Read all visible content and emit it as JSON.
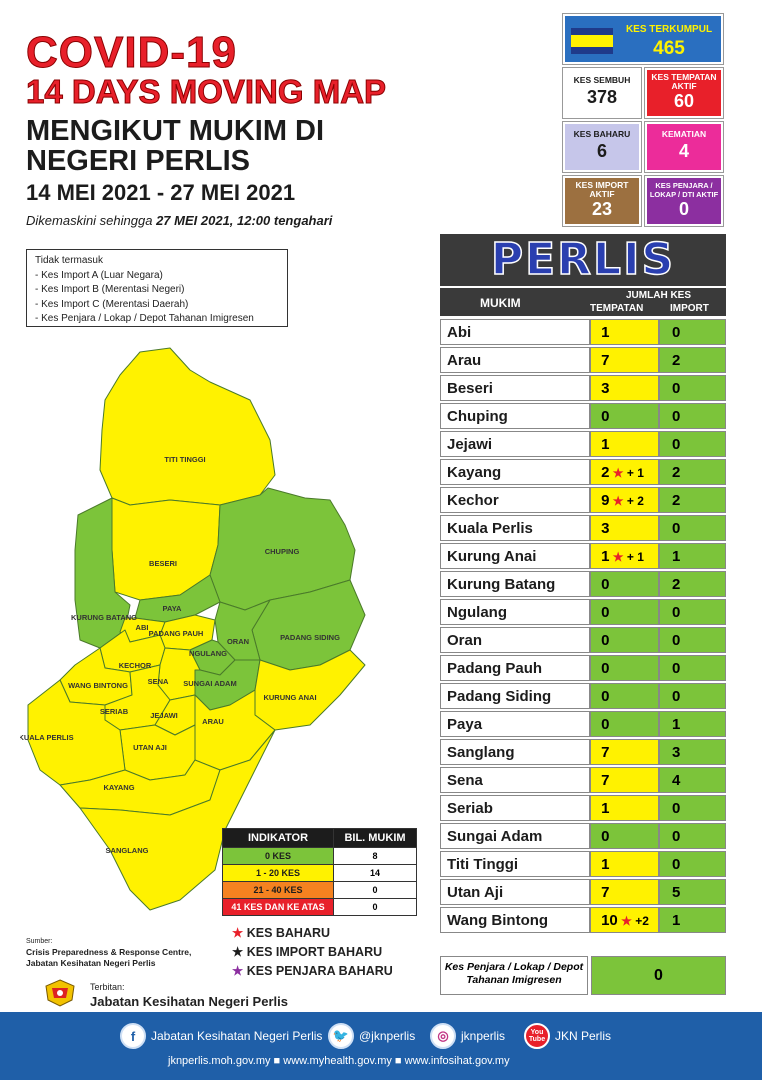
{
  "header": {
    "title_line1": "COVID-19",
    "title_line2": "14 DAYS MOVING MAP",
    "subtitle_line1": "MENGIKUT MUKIM DI",
    "subtitle_line2": "NEGERI PERLIS",
    "date_range": "14 MEI 2021 - 27 MEI 2021",
    "updated_prefix": "Dikemaskini sehingga ",
    "updated_value": "27 MEI 2021, 12:00 tengahari"
  },
  "exclusion_note": {
    "heading": "Tidak termasuk",
    "items": [
      "- Kes Import A (Luar Negara)",
      "- Kes Import B (Merentasi Negeri)",
      "- Kes Import C (Merentasi Daerah)",
      "- Kes Penjara / Lokap / Depot Tahanan Imigresen"
    ]
  },
  "stats": {
    "kes_terkumpul": {
      "label": "KES TERKUMPUL",
      "value": "465"
    },
    "kes_sembuh": {
      "label": "KES SEMBUH",
      "value": "378"
    },
    "kes_tempatan_aktif": {
      "label": "KES TEMPATAN AKTIF",
      "value": "60"
    },
    "kes_baharu": {
      "label": "KES BAHARU",
      "value": "6"
    },
    "kematian": {
      "label": "KEMATIAN",
      "value": "4"
    },
    "kes_import_aktif": {
      "label": "KES IMPORT AKTIF",
      "value": "23"
    },
    "kes_penjara": {
      "label": "KES PENJARA / LOKAP / DTI AKTIF",
      "value": "0"
    }
  },
  "table": {
    "state": "PERLIS",
    "col_mukim": "MUKIM",
    "col_group": "JUMLAH KES",
    "col_tempatan": "TEMPATAN",
    "col_import": "IMPORT",
    "rows": [
      {
        "mukim": "Abi",
        "tempatan": "1",
        "import": "0",
        "level": "y",
        "new": ""
      },
      {
        "mukim": "Arau",
        "tempatan": "7",
        "import": "2",
        "level": "y",
        "new": ""
      },
      {
        "mukim": "Beseri",
        "tempatan": "3",
        "import": "0",
        "level": "y",
        "new": ""
      },
      {
        "mukim": "Chuping",
        "tempatan": "0",
        "import": "0",
        "level": "g",
        "new": ""
      },
      {
        "mukim": "Jejawi",
        "tempatan": "1",
        "import": "0",
        "level": "y",
        "new": ""
      },
      {
        "mukim": "Kayang",
        "tempatan": "2",
        "import": "2",
        "level": "y",
        "new": "+ 1"
      },
      {
        "mukim": "Kechor",
        "tempatan": "9",
        "import": "2",
        "level": "y",
        "new": "+ 2"
      },
      {
        "mukim": "Kuala Perlis",
        "tempatan": "3",
        "import": "0",
        "level": "y",
        "new": ""
      },
      {
        "mukim": "Kurung Anai",
        "tempatan": "1",
        "import": "1",
        "level": "y",
        "new": "+ 1"
      },
      {
        "mukim": "Kurung Batang",
        "tempatan": "0",
        "import": "2",
        "level": "g",
        "new": ""
      },
      {
        "mukim": "Ngulang",
        "tempatan": "0",
        "import": "0",
        "level": "g",
        "new": ""
      },
      {
        "mukim": "Oran",
        "tempatan": "0",
        "import": "0",
        "level": "g",
        "new": ""
      },
      {
        "mukim": "Padang Pauh",
        "tempatan": "0",
        "import": "0",
        "level": "g",
        "new": ""
      },
      {
        "mukim": "Padang Siding",
        "tempatan": "0",
        "import": "0",
        "level": "g",
        "new": ""
      },
      {
        "mukim": "Paya",
        "tempatan": "0",
        "import": "1",
        "level": "g",
        "new": ""
      },
      {
        "mukim": "Sanglang",
        "tempatan": "7",
        "import": "3",
        "level": "y",
        "new": ""
      },
      {
        "mukim": "Sena",
        "tempatan": "7",
        "import": "4",
        "level": "y",
        "new": ""
      },
      {
        "mukim": "Seriab",
        "tempatan": "1",
        "import": "0",
        "level": "y",
        "new": ""
      },
      {
        "mukim": "Sungai Adam",
        "tempatan": "0",
        "import": "0",
        "level": "g",
        "new": ""
      },
      {
        "mukim": "Titi Tinggi",
        "tempatan": "1",
        "import": "0",
        "level": "y",
        "new": ""
      },
      {
        "mukim": "Utan Aji",
        "tempatan": "7",
        "import": "5",
        "level": "y",
        "new": ""
      },
      {
        "mukim": "Wang Bintong",
        "tempatan": "10",
        "import": "1",
        "level": "y",
        "new": "+2"
      }
    ],
    "penjara_label": "Kes Penjara / Lokap / Depot Tahanan Imigresen",
    "penjara_value": "0"
  },
  "map_labels": {
    "titi_tinggi": "TITI TINGGI",
    "beseri": "BESERI",
    "chuping": "CHUPING",
    "kurung_batang": "KURUNG BATANG",
    "paya": "PAYA",
    "abi": "ABI",
    "padang_pauh": "PADANG PAUH",
    "ngulang": "NGULANG",
    "oran": "ORAN",
    "padang_siding": "PADANG SIDING",
    "kechor": "KECHOR",
    "wang_bintong": "WANG BINTONG",
    "sena": "SENA",
    "sungai_adam": "SUNGAI ADAM",
    "seriab": "SERIAB",
    "jejawi": "JEJAWI",
    "arau": "ARAU",
    "kurung_anai": "KURUNG ANAI",
    "kuala_perlis": "KUALA PERLIS",
    "utan_aji": "UTAN AJI",
    "kayang": "KAYANG",
    "sanglang": "SANGLANG"
  },
  "indicator": {
    "col1": "INDIKATOR",
    "col2": "BIL. MUKIM",
    "rows": [
      {
        "label": "0 KES",
        "count": "8",
        "color": "#7cc43a",
        "text": "#1c1c1c"
      },
      {
        "label": "1 - 20 KES",
        "count": "14",
        "color": "#fff200",
        "text": "#1c1c1c"
      },
      {
        "label": "21 - 40 KES",
        "count": "0",
        "color": "#f58220",
        "text": "#1c1c1c"
      },
      {
        "label": "41 KES DAN KE ATAS",
        "count": "0",
        "color": "#e8202a",
        "text": "#ffffff"
      }
    ]
  },
  "legend": {
    "kes_baharu": "KES BAHARU",
    "kes_import_baharu": "KES IMPORT BAHARU",
    "kes_penjara_baharu": "KES PENJARA BAHARU"
  },
  "source": {
    "label": "Sumber:",
    "line1": "Crisis Preparedness & Response Centre,",
    "line2": "Jabatan Kesihatan Negeri Perlis"
  },
  "publisher": {
    "label": "Terbitan:",
    "name": "Jabatan Kesihatan Negeri Perlis"
  },
  "footer": {
    "facebook": "Jabatan Kesihatan Negeri Perlis",
    "twitter": "@jknperlis",
    "instagram": "jknperlis",
    "youtube": "JKN Perlis",
    "youtube_badge": "You Tube",
    "website1": "jknperlis.moh.gov.my",
    "website2": "www.myhealth.gov.my",
    "website3": "www.infosihat.gov.my"
  },
  "colors": {
    "title_red": "#e8202a",
    "green": "#7cc43a",
    "yellow": "#fff200",
    "orange": "#f58220",
    "footer_blue": "#1f5fa8"
  }
}
